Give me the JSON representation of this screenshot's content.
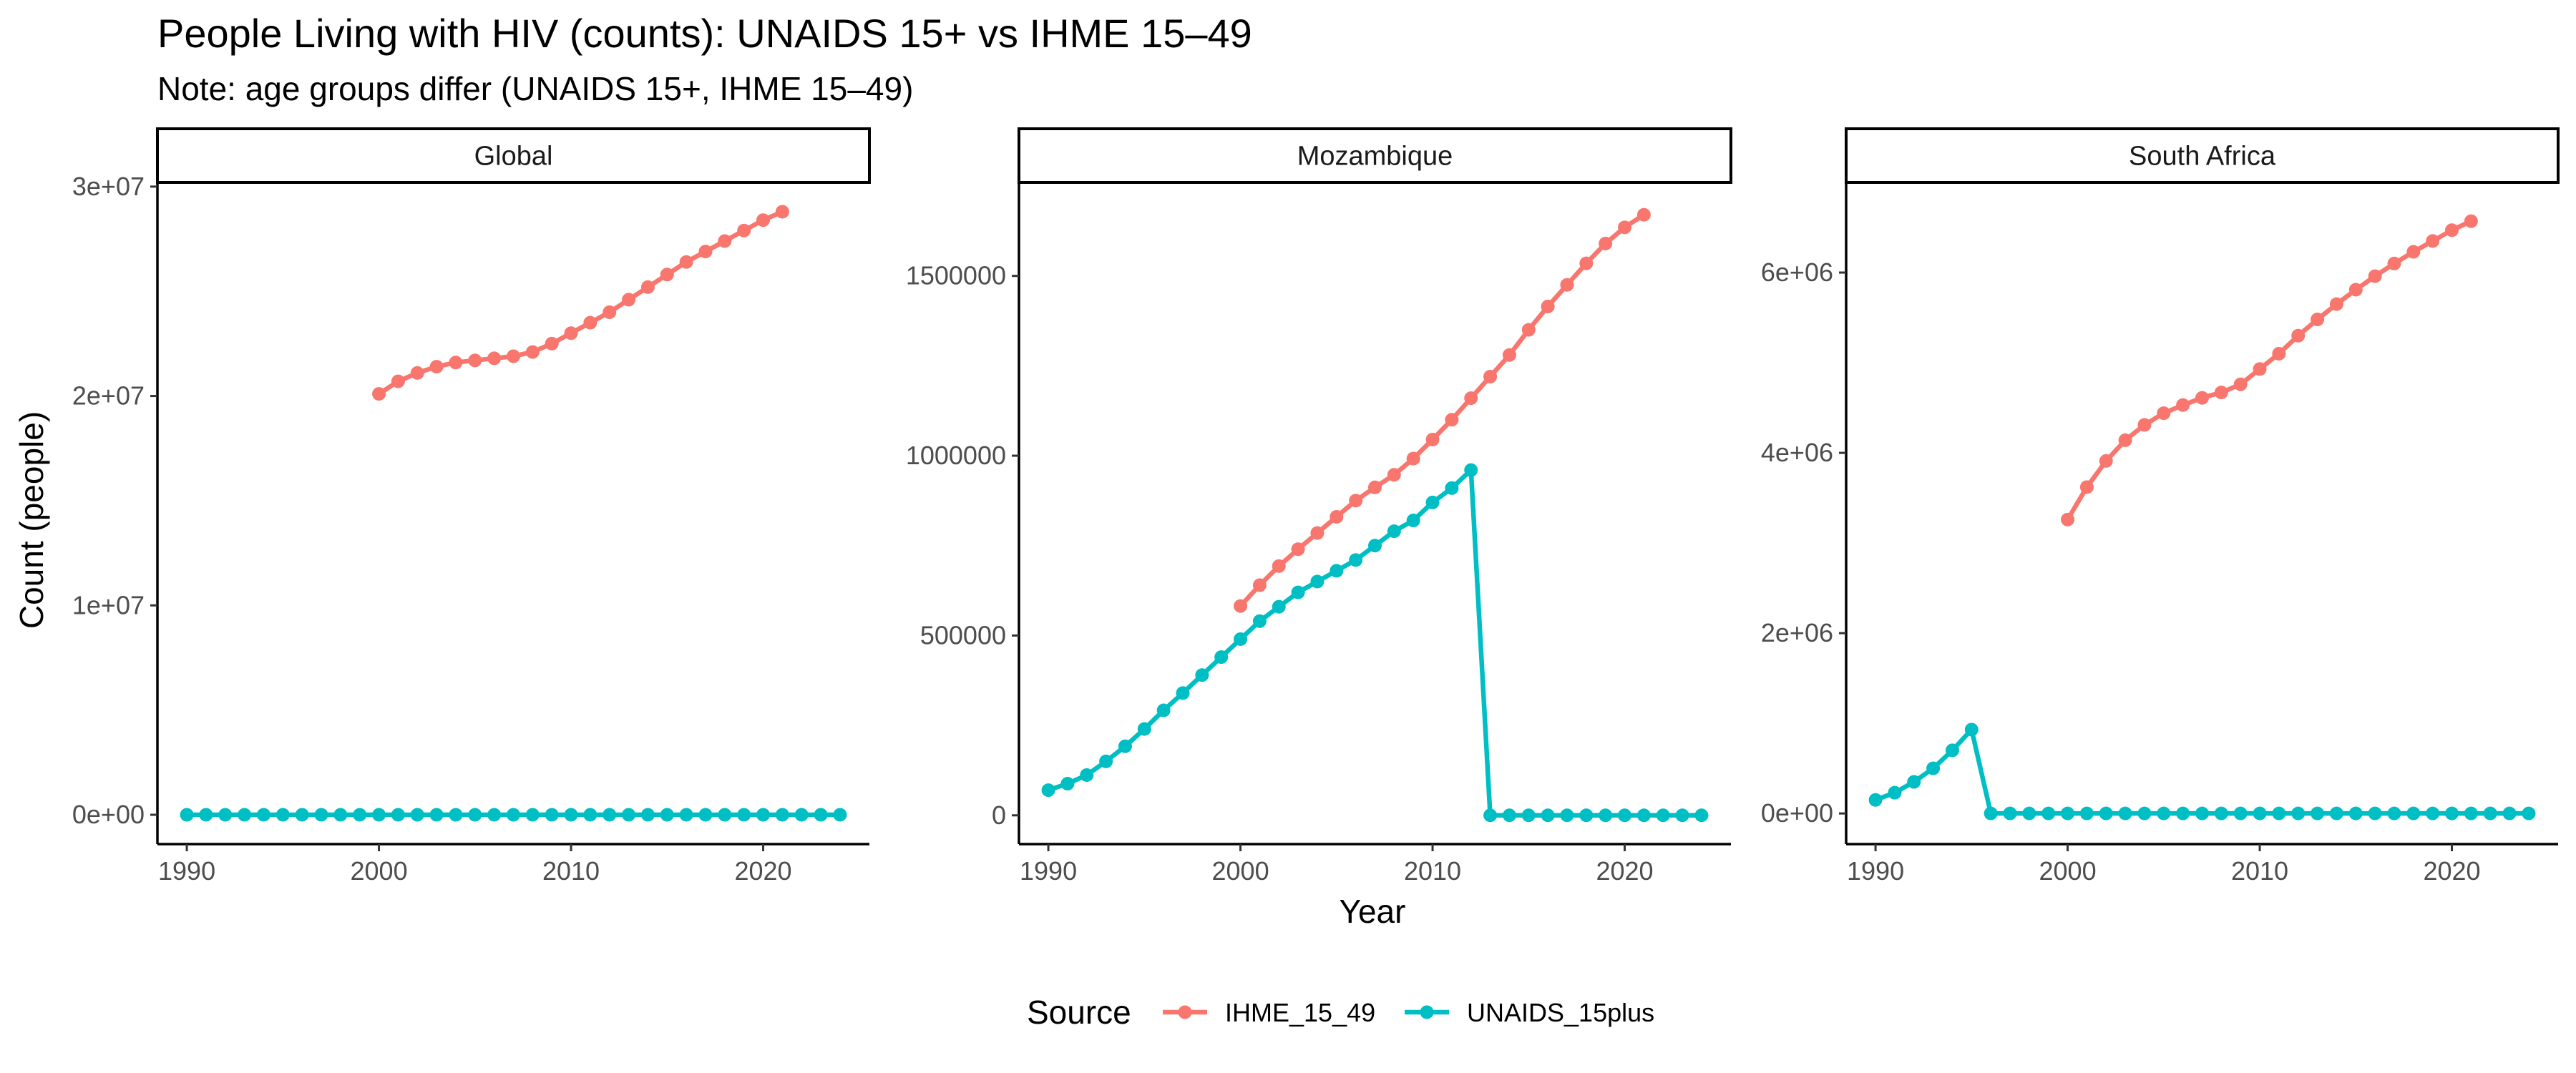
{
  "chart_data": {
    "type": "line",
    "title": "People Living with HIV (counts): UNAIDS 15+ vs IHME 15–49",
    "subtitle": "Note: age groups differ (UNAIDS 15+, IHME 15–49)",
    "xlabel": "Year",
    "ylabel": "Count (people)",
    "x_ticks": [
      1990,
      2000,
      2010,
      2020
    ],
    "xlim": [
      1990,
      2024
    ],
    "legend": {
      "title": "Source",
      "position": "bottom",
      "entries": [
        {
          "name": "IHME_15_49",
          "color": "#F8766D"
        },
        {
          "name": "UNAIDS_15plus",
          "color": "#00BFC4"
        }
      ]
    },
    "grid": false,
    "panels": [
      {
        "name": "Global",
        "ylim": [
          -1400000,
          30200000
        ],
        "y_ticks": [
          0,
          10000000,
          20000000,
          30000000
        ],
        "y_tick_labels": [
          "0e+00",
          "1e+07",
          "2e+07",
          "3e+07"
        ],
        "series": [
          {
            "name": "IHME_15_49",
            "color": "#F8766D",
            "x": [
              2000,
              2001,
              2002,
              2003,
              2004,
              2005,
              2006,
              2007,
              2008,
              2009,
              2010,
              2011,
              2012,
              2013,
              2014,
              2015,
              2016,
              2017,
              2018,
              2019,
              2020,
              2021
            ],
            "values": [
              20100000,
              20700000,
              21100000,
              21400000,
              21600000,
              21700000,
              21800000,
              21900000,
              22100000,
              22500000,
              23000000,
              23500000,
              24000000,
              24600000,
              25200000,
              25800000,
              26400000,
              26900000,
              27400000,
              27900000,
              28400000,
              28800000
            ]
          },
          {
            "name": "UNAIDS_15plus",
            "color": "#00BFC4",
            "x": [
              1990,
              1991,
              1992,
              1993,
              1994,
              1995,
              1996,
              1997,
              1998,
              1999,
              2000,
              2001,
              2002,
              2003,
              2004,
              2005,
              2006,
              2007,
              2008,
              2009,
              2010,
              2011,
              2012,
              2013,
              2014,
              2015,
              2016,
              2017,
              2018,
              2019,
              2020,
              2021,
              2022,
              2023,
              2024
            ],
            "values": [
              0,
              0,
              0,
              0,
              0,
              0,
              0,
              0,
              0,
              0,
              0,
              0,
              0,
              0,
              0,
              0,
              0,
              0,
              0,
              0,
              0,
              0,
              0,
              0,
              0,
              0,
              0,
              0,
              0,
              0,
              0,
              0,
              0,
              0,
              0
            ]
          }
        ]
      },
      {
        "name": "Mozambique",
        "ylim": [
          -80000,
          1760000
        ],
        "y_ticks": [
          0,
          500000,
          1000000,
          1500000
        ],
        "y_tick_labels": [
          "0",
          "500000",
          "1000000",
          "1500000"
        ],
        "series": [
          {
            "name": "IHME_15_49",
            "color": "#F8766D",
            "x": [
              2000,
              2001,
              2002,
              2003,
              2004,
              2005,
              2006,
              2007,
              2008,
              2009,
              2010,
              2011,
              2012,
              2013,
              2014,
              2015,
              2016,
              2017,
              2018,
              2019,
              2020,
              2021
            ],
            "values": [
              582000,
              640000,
              693000,
              740000,
              785000,
              830000,
              875000,
              912000,
              947000,
              992000,
              1045000,
              1100000,
              1160000,
              1220000,
              1280000,
              1350000,
              1415000,
              1475000,
              1535000,
              1590000,
              1635000,
              1670000
            ]
          },
          {
            "name": "UNAIDS_15plus",
            "color": "#00BFC4",
            "x": [
              1990,
              1991,
              1992,
              1993,
              1994,
              1995,
              1996,
              1997,
              1998,
              1999,
              2000,
              2001,
              2002,
              2003,
              2004,
              2005,
              2006,
              2007,
              2008,
              2009,
              2010,
              2011,
              2012,
              2013,
              2014,
              2015,
              2016,
              2017,
              2018,
              2019,
              2020,
              2021,
              2022,
              2023,
              2024
            ],
            "values": [
              70000,
              88000,
              112000,
              150000,
              192000,
              240000,
              292000,
              340000,
              390000,
              440000,
              490000,
              540000,
              580000,
              620000,
              650000,
              680000,
              710000,
              750000,
              790000,
              820000,
              870000,
              910000,
              960000,
              0,
              0,
              0,
              0,
              0,
              0,
              0,
              0,
              0,
              0,
              0,
              0
            ]
          }
        ]
      },
      {
        "name": "South Africa",
        "ylim": [
          -340000,
          7000000
        ],
        "y_ticks": [
          0,
          2000000,
          4000000,
          6000000
        ],
        "y_tick_labels": [
          "0e+00",
          "2e+06",
          "4e+06",
          "6e+06"
        ],
        "series": [
          {
            "name": "IHME_15_49",
            "color": "#F8766D",
            "x": [
              2000,
              2001,
              2002,
              2003,
              2004,
              2005,
              2006,
              2007,
              2008,
              2009,
              2010,
              2011,
              2012,
              2013,
              2014,
              2015,
              2016,
              2017,
              2018,
              2019,
              2020,
              2021
            ],
            "values": [
              3260000,
              3620000,
              3910000,
              4140000,
              4310000,
              4440000,
              4530000,
              4610000,
              4670000,
              4760000,
              4930000,
              5100000,
              5300000,
              5480000,
              5650000,
              5810000,
              5960000,
              6100000,
              6230000,
              6350000,
              6470000,
              6570000
            ]
          },
          {
            "name": "UNAIDS_15plus",
            "color": "#00BFC4",
            "x": [
              1990,
              1991,
              1992,
              1993,
              1994,
              1995,
              1996,
              1997,
              1998,
              1999,
              2000,
              2001,
              2002,
              2003,
              2004,
              2005,
              2006,
              2007,
              2008,
              2009,
              2010,
              2011,
              2012,
              2013,
              2014,
              2015,
              2016,
              2017,
              2018,
              2019,
              2020,
              2021,
              2022,
              2023,
              2024
            ],
            "values": [
              150000,
              230000,
              350000,
              500000,
              700000,
              930000,
              0,
              0,
              0,
              0,
              0,
              0,
              0,
              0,
              0,
              0,
              0,
              0,
              0,
              0,
              0,
              0,
              0,
              0,
              0,
              0,
              0,
              0,
              0,
              0,
              0,
              0,
              0,
              0,
              0
            ]
          }
        ]
      }
    ]
  }
}
